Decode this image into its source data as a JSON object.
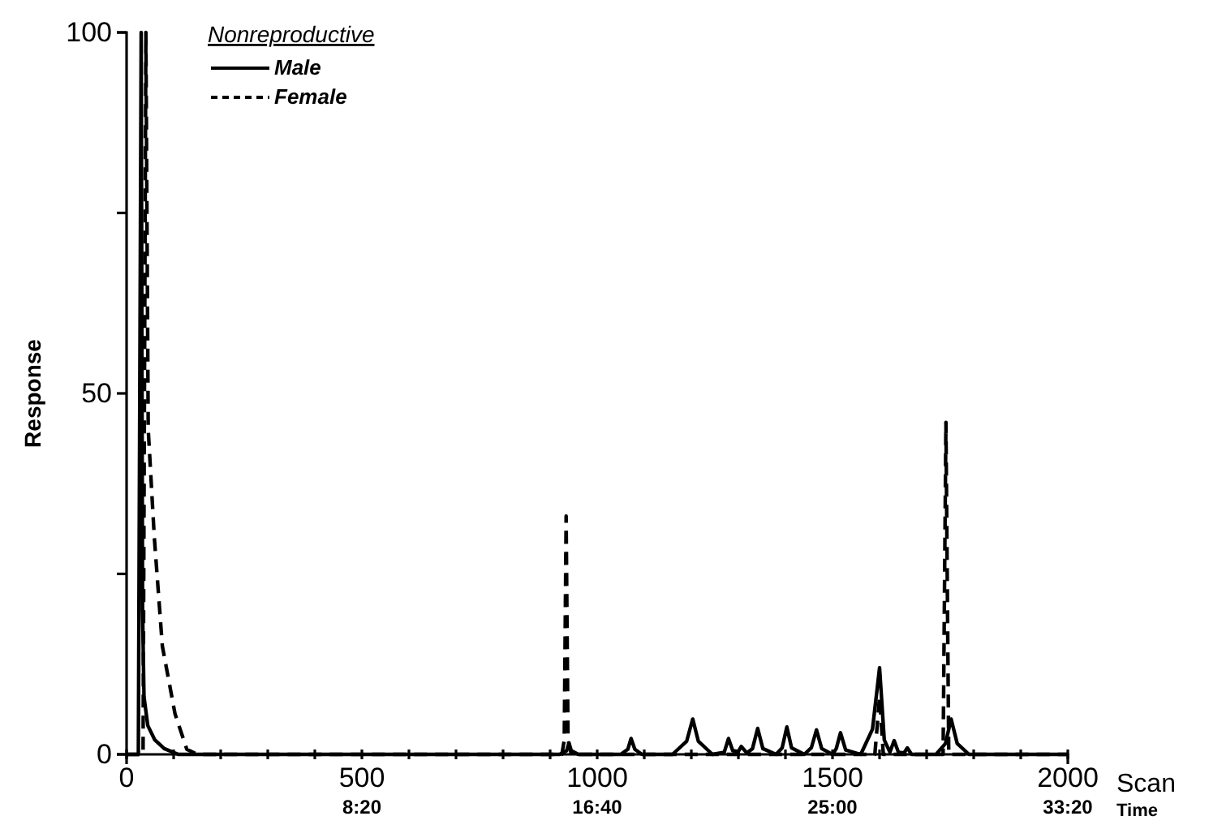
{
  "chart_data": {
    "type": "line",
    "xlabel": "Scan",
    "ylabel": "Response",
    "legend_title": "Nonreproductive",
    "legend": "top left",
    "grid": false,
    "marker": "none",
    "x2label": "Time",
    "xlim": [
      0,
      2000
    ],
    "ylim": [
      0,
      100
    ],
    "x2lim": [
      0,
      2000
    ],
    "xticks": [
      0,
      {
        "value": 100,
        "label": null
      },
      {
        "value": 200,
        "label": null
      },
      {
        "value": 300,
        "label": null
      },
      {
        "value": 400,
        "label": null
      },
      500,
      {
        "value": 600,
        "label": null
      },
      {
        "value": 700,
        "label": null
      },
      {
        "value": 800,
        "label": null
      },
      {
        "value": 900,
        "label": null
      },
      1000,
      {
        "value": 1100,
        "label": null
      },
      {
        "value": 1200,
        "label": null
      },
      {
        "value": 1300,
        "label": null
      },
      {
        "value": 1400,
        "label": null
      },
      1500,
      {
        "value": 1600,
        "label": null
      },
      {
        "value": 1700,
        "label": null
      },
      {
        "value": 1800,
        "label": null
      },
      {
        "value": 1900,
        "label": null
      },
      2000
    ],
    "x2ticks": [
      {
        "value": 500,
        "label": "8:20"
      },
      {
        "value": 1000,
        "label": "16:40"
      },
      {
        "value": 1500,
        "label": "25:00"
      },
      {
        "value": 2000,
        "label": "33:20"
      }
    ],
    "yticks": [
      0,
      {
        "value": 25,
        "label": null
      },
      50,
      {
        "value": 75,
        "label": null
      },
      100
    ],
    "series": [
      {
        "name": "Male",
        "color": "#000000",
        "line_style": "solid",
        "x": [
          0,
          25,
          31,
          34,
          37,
          45,
          60,
          80,
          110,
          920,
          935,
          940,
          945,
          960,
          1050,
          1065,
          1072,
          1080,
          1095,
          1160,
          1190,
          1203,
          1215,
          1245,
          1270,
          1279,
          1288,
          1300,
          1306,
          1318,
          1330,
          1341,
          1352,
          1380,
          1393,
          1403,
          1413,
          1440,
          1455,
          1466,
          1477,
          1500,
          1508,
          1517,
          1528,
          1560,
          1585,
          1600,
          1610,
          1622,
          1631,
          1640,
          1652,
          1659,
          1668,
          1720,
          1740,
          1752,
          1765,
          1790,
          2000
        ],
        "values": [
          0,
          0,
          100,
          20,
          8,
          4,
          2,
          0.8,
          0,
          0,
          0.5,
          1.6,
          0.5,
          0,
          0,
          0.7,
          2.2,
          0.7,
          0,
          0,
          1.8,
          4.9,
          1.8,
          0,
          0.3,
          2.2,
          0.5,
          0.4,
          1.1,
          0.2,
          0.8,
          3.6,
          0.8,
          0,
          0.9,
          3.8,
          0.9,
          0,
          0.9,
          3.4,
          0.8,
          0,
          0.8,
          3.0,
          0.6,
          0,
          3.5,
          12,
          2,
          0.3,
          1.9,
          0.3,
          0.2,
          0.9,
          0,
          0,
          1.5,
          4.9,
          1.5,
          0,
          0
        ]
      },
      {
        "name": "Female",
        "color": "#000000",
        "line_style": "dashed",
        "x": [
          0,
          35,
          41,
          46,
          59,
          76,
          103,
          128,
          150,
          925,
          930,
          934,
          938,
          945,
          1590,
          1600,
          1608,
          1735,
          1741,
          1747,
          2000
        ],
        "values": [
          0,
          0,
          100,
          45,
          30,
          15,
          5.6,
          0.7,
          0,
          0,
          2,
          33,
          2,
          0,
          0,
          8,
          0,
          0,
          46,
          0,
          0
        ]
      }
    ]
  }
}
